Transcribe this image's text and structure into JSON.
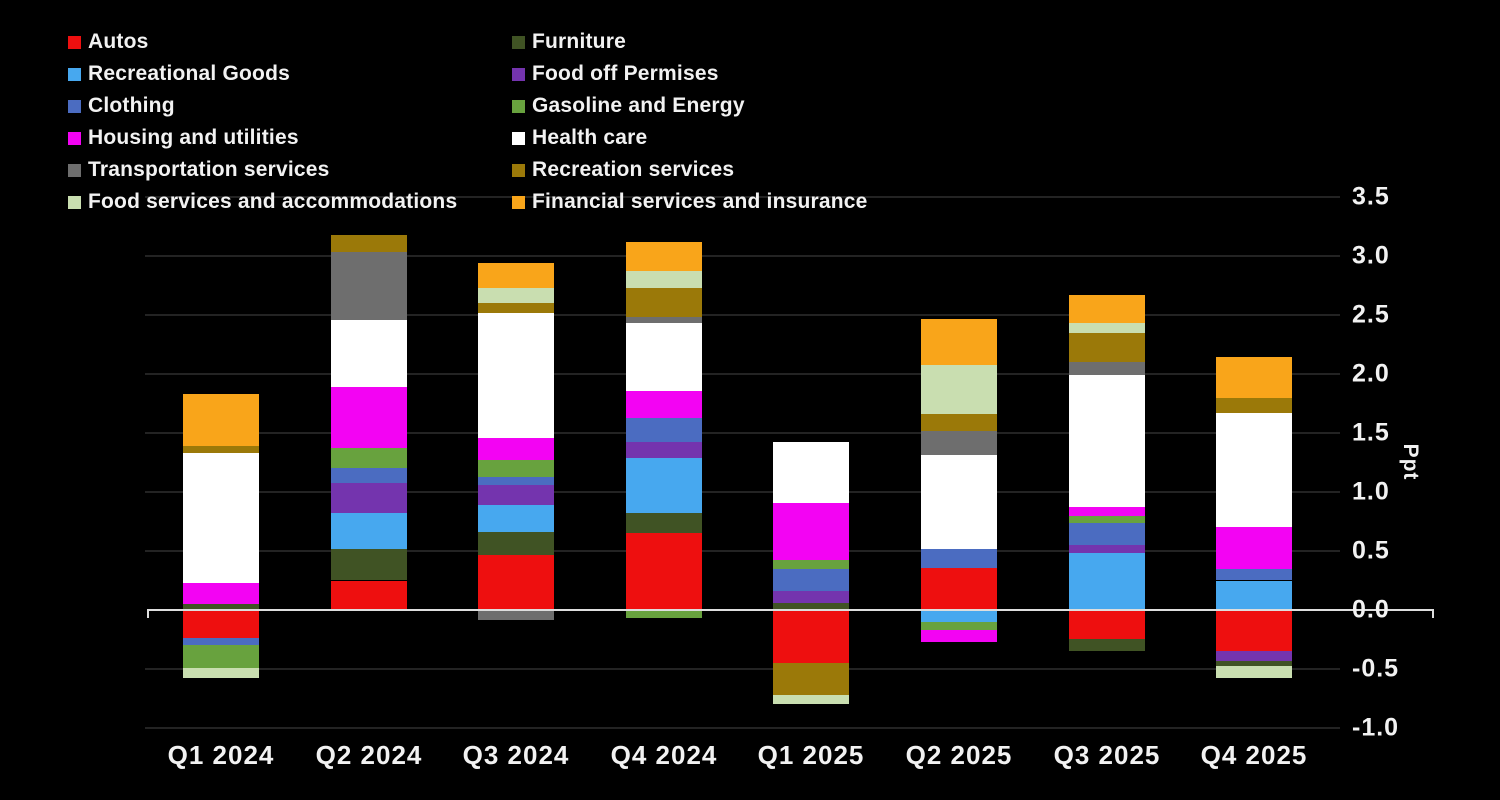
{
  "chart_data": {
    "type": "bar",
    "subtype": "stacked-bar-with-negatives",
    "title": "",
    "unit_label": "Ppt",
    "xlabel": "",
    "ylabel": "Ppt",
    "categories": [
      "Q1 2024",
      "Q2 2024",
      "Q3 2024",
      "Q4 2024",
      "Q1 2025",
      "Q2 2025",
      "Q3 2025",
      "Q4 2025"
    ],
    "y_ticks": [
      "3.5",
      "3.0",
      "2.5",
      "2.0",
      "1.5",
      "1.0",
      "0.5",
      "0.0",
      "-0.5",
      "-1.0"
    ],
    "ylim": [
      -1.0,
      3.5
    ],
    "grid": true,
    "legend_position": "top-left",
    "colors": {
      "autos": "#ee0f0f",
      "recreational_goods": "#47a8ef",
      "clothing": "#4b6cc1",
      "housing": "#f303f3",
      "transportation": "#6e6e6e",
      "food_services": "#c9deb0",
      "furniture": "#405324",
      "food_off_premises": "#7434ae",
      "gasoline": "#68a23e",
      "health_care": "#ffffff",
      "recreation_services": "#9b7909",
      "financial": "#f9a51a"
    },
    "legend_columns": [
      [
        {
          "key": "autos",
          "label": "Autos"
        },
        {
          "key": "recreational_goods",
          "label": "Recreational Goods"
        },
        {
          "key": "clothing",
          "label": "Clothing"
        },
        {
          "key": "housing",
          "label": "Housing and utilities"
        },
        {
          "key": "transportation",
          "label": "Transportation services"
        },
        {
          "key": "food_services",
          "label": "Food services and accommodations"
        }
      ],
      [
        {
          "key": "furniture",
          "label": "Furniture"
        },
        {
          "key": "food_off_premises",
          "label": "Food off Permises"
        },
        {
          "key": "gasoline",
          "label": "Gasoline and Energy"
        },
        {
          "key": "health_care",
          "label": "Health care"
        },
        {
          "key": "recreation_services",
          "label": "Recreation services"
        },
        {
          "key": "financial",
          "label": "Financial services and insurance"
        }
      ]
    ],
    "bars": [
      {
        "category": "Q1 2024",
        "positive": [
          {
            "key": "furniture",
            "value": 0.05
          },
          {
            "key": "housing",
            "value": 0.18
          },
          {
            "key": "health_care",
            "value": 1.1
          },
          {
            "key": "recreation_services",
            "value": 0.06
          },
          {
            "key": "financial",
            "value": 0.44
          }
        ],
        "negative": [
          {
            "key": "autos",
            "value": 0.23
          },
          {
            "key": "clothing",
            "value": 0.06
          },
          {
            "key": "gasoline",
            "value": 0.19
          },
          {
            "key": "food_services",
            "value": 0.09
          }
        ]
      },
      {
        "category": "Q2 2024",
        "positive": [
          {
            "key": "autos",
            "value": 0.25
          },
          {
            "key": "furniture",
            "value": 0.27
          },
          {
            "key": "recreational_goods",
            "value": 0.3
          },
          {
            "key": "food_off_premises",
            "value": 0.26
          },
          {
            "key": "clothing",
            "value": 0.12
          },
          {
            "key": "gasoline",
            "value": 0.17
          },
          {
            "key": "housing",
            "value": 0.52
          },
          {
            "key": "health_care",
            "value": 0.57
          },
          {
            "key": "transportation",
            "value": 0.57
          },
          {
            "key": "recreation_services",
            "value": 0.15
          }
        ],
        "negative": []
      },
      {
        "category": "Q3 2024",
        "positive": [
          {
            "key": "autos",
            "value": 0.47
          },
          {
            "key": "furniture",
            "value": 0.19
          },
          {
            "key": "recreational_goods",
            "value": 0.23
          },
          {
            "key": "food_off_premises",
            "value": 0.17
          },
          {
            "key": "clothing",
            "value": 0.07
          },
          {
            "key": "gasoline",
            "value": 0.14
          },
          {
            "key": "housing",
            "value": 0.19
          },
          {
            "key": "health_care",
            "value": 1.06
          },
          {
            "key": "recreation_services",
            "value": 0.08
          },
          {
            "key": "food_services",
            "value": 0.13
          },
          {
            "key": "financial",
            "value": 0.21
          }
        ],
        "negative": [
          {
            "key": "transportation",
            "value": 0.08
          }
        ]
      },
      {
        "category": "Q4 2024",
        "positive": [
          {
            "key": "autos",
            "value": 0.65
          },
          {
            "key": "furniture",
            "value": 0.17
          },
          {
            "key": "recreational_goods",
            "value": 0.47
          },
          {
            "key": "food_off_premises",
            "value": 0.13
          },
          {
            "key": "clothing",
            "value": 0.21
          },
          {
            "key": "housing",
            "value": 0.23
          },
          {
            "key": "health_care",
            "value": 0.57
          },
          {
            "key": "transportation",
            "value": 0.05
          },
          {
            "key": "recreation_services",
            "value": 0.25
          },
          {
            "key": "food_services",
            "value": 0.14
          },
          {
            "key": "financial",
            "value": 0.25
          }
        ],
        "negative": [
          {
            "key": "gasoline",
            "value": 0.06
          }
        ]
      },
      {
        "category": "Q1 2025",
        "positive": [
          {
            "key": "furniture",
            "value": 0.06
          },
          {
            "key": "food_off_premises",
            "value": 0.1
          },
          {
            "key": "clothing",
            "value": 0.19
          },
          {
            "key": "gasoline",
            "value": 0.07
          },
          {
            "key": "housing",
            "value": 0.49
          },
          {
            "key": "health_care",
            "value": 0.51
          }
        ],
        "negative": [
          {
            "key": "autos",
            "value": 0.44
          },
          {
            "key": "recreation_services",
            "value": 0.27
          },
          {
            "key": "food_services",
            "value": 0.08
          }
        ]
      },
      {
        "category": "Q2 2025",
        "positive": [
          {
            "key": "autos",
            "value": 0.36
          },
          {
            "key": "clothing",
            "value": 0.16
          },
          {
            "key": "health_care",
            "value": 0.79
          },
          {
            "key": "transportation",
            "value": 0.21
          },
          {
            "key": "recreation_services",
            "value": 0.14
          },
          {
            "key": "food_services",
            "value": 0.42
          },
          {
            "key": "financial",
            "value": 0.39
          }
        ],
        "negative": [
          {
            "key": "recreational_goods",
            "value": 0.09
          },
          {
            "key": "gasoline",
            "value": 0.07
          },
          {
            "key": "housing",
            "value": 0.1
          }
        ]
      },
      {
        "category": "Q3 2025",
        "positive": [
          {
            "key": "recreational_goods",
            "value": 0.48
          },
          {
            "key": "food_off_premises",
            "value": 0.07
          },
          {
            "key": "clothing",
            "value": 0.19
          },
          {
            "key": "gasoline",
            "value": 0.06
          },
          {
            "key": "housing",
            "value": 0.07
          },
          {
            "key": "health_care",
            "value": 1.12
          },
          {
            "key": "transportation",
            "value": 0.11
          },
          {
            "key": "recreation_services",
            "value": 0.25
          },
          {
            "key": "food_services",
            "value": 0.08
          },
          {
            "key": "financial",
            "value": 0.24
          }
        ],
        "negative": [
          {
            "key": "autos",
            "value": 0.24
          },
          {
            "key": "furniture",
            "value": 0.1
          }
        ]
      },
      {
        "category": "Q4 2025",
        "positive": [
          {
            "key": "recreational_goods",
            "value": 0.25
          },
          {
            "key": "clothing",
            "value": 0.1
          },
          {
            "key": "housing",
            "value": 0.35
          },
          {
            "key": "health_care",
            "value": 0.97
          },
          {
            "key": "recreation_services",
            "value": 0.13
          },
          {
            "key": "financial",
            "value": 0.34
          }
        ],
        "negative": [
          {
            "key": "autos",
            "value": 0.34
          },
          {
            "key": "food_off_premises",
            "value": 0.08
          },
          {
            "key": "furniture",
            "value": 0.05
          },
          {
            "key": "food_services",
            "value": 0.1
          }
        ]
      }
    ]
  }
}
